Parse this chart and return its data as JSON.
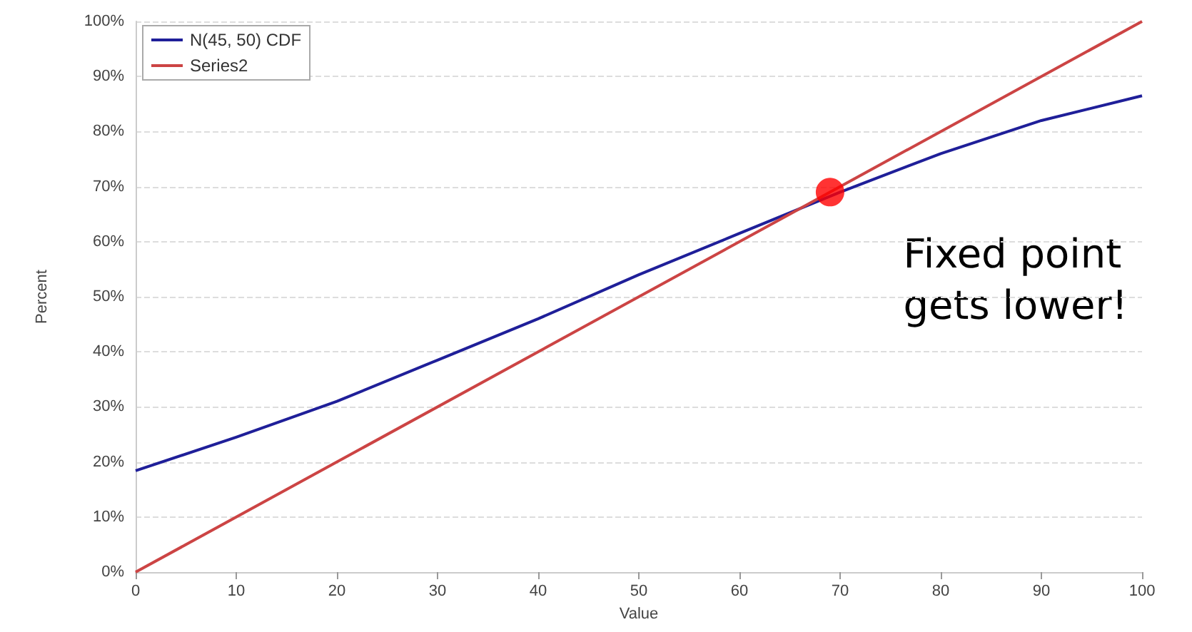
{
  "chart_data": {
    "type": "line",
    "xlabel": "Value",
    "ylabel": "Percent",
    "xlim": [
      0,
      100
    ],
    "xticks": [
      0,
      10,
      20,
      30,
      40,
      50,
      60,
      70,
      80,
      90,
      100
    ],
    "ylim": [
      0,
      100
    ],
    "yticks": [
      {
        "value": 0,
        "label": "0%"
      },
      {
        "value": 10,
        "label": "10%"
      },
      {
        "value": 20,
        "label": "20%"
      },
      {
        "value": 30,
        "label": "30%"
      },
      {
        "value": 40,
        "label": "40%"
      },
      {
        "value": 50,
        "label": "50%"
      },
      {
        "value": 60,
        "label": "60%"
      },
      {
        "value": 70,
        "label": "70%"
      },
      {
        "value": 80,
        "label": "80%"
      },
      {
        "value": 90,
        "label": "90%"
      },
      {
        "value": 100,
        "label": "100%"
      }
    ],
    "series": [
      {
        "name": "N(45, 50) CDF",
        "color": "#1f1f99",
        "x": [
          0,
          10,
          20,
          30,
          40,
          50,
          60,
          70,
          80,
          90,
          100
        ],
        "values": [
          18.4,
          24.5,
          31,
          38.5,
          46,
          54,
          61.5,
          69,
          76,
          82,
          86.5
        ]
      },
      {
        "name": "Series2",
        "color": "#cc4444",
        "x": [
          0,
          100
        ],
        "values": [
          0,
          100
        ]
      },
      {
        "type": "scatter",
        "marker": "circle",
        "color": "#ff0000",
        "x": [
          69
        ],
        "values": [
          69
        ]
      }
    ],
    "annotations": [
      "Fixed point\ngets lower!"
    ],
    "grid": "y",
    "legend": "top left",
    "line_style": "solid"
  }
}
